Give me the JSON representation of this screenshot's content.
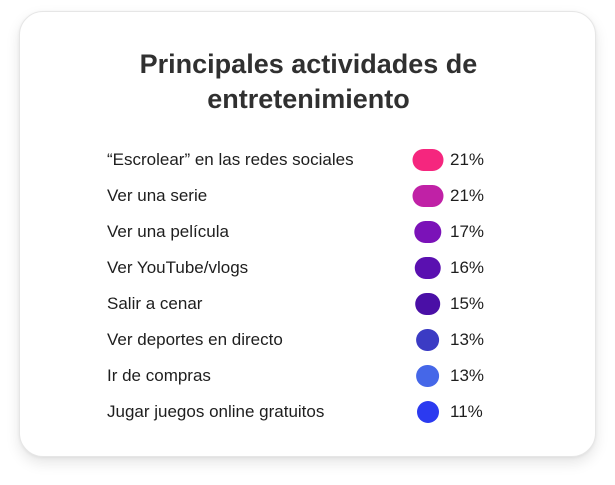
{
  "chart_data": {
    "type": "table",
    "title": "Principales actividades de entretenimiento",
    "categories": [
      "“Escrolear” en las redes sociales",
      "Ver una serie",
      "Ver una película",
      "Ver YouTube/vlogs",
      "Salir a cenar",
      "Ver deportes en directo",
      "Ir de compras",
      "Jugar juegos online gratuitos"
    ],
    "values": [
      21,
      21,
      17,
      16,
      15,
      13,
      13,
      11
    ],
    "value_labels": [
      "21%",
      "21%",
      "17%",
      "16%",
      "15%",
      "13%",
      "13%",
      "11%"
    ],
    "colors": [
      "#f5267e",
      "#c021a6",
      "#7b12b8",
      "#5a10b0",
      "#4a0fa6",
      "#3b3bc4",
      "#4567e8",
      "#2b3af0"
    ],
    "unit": "%"
  }
}
